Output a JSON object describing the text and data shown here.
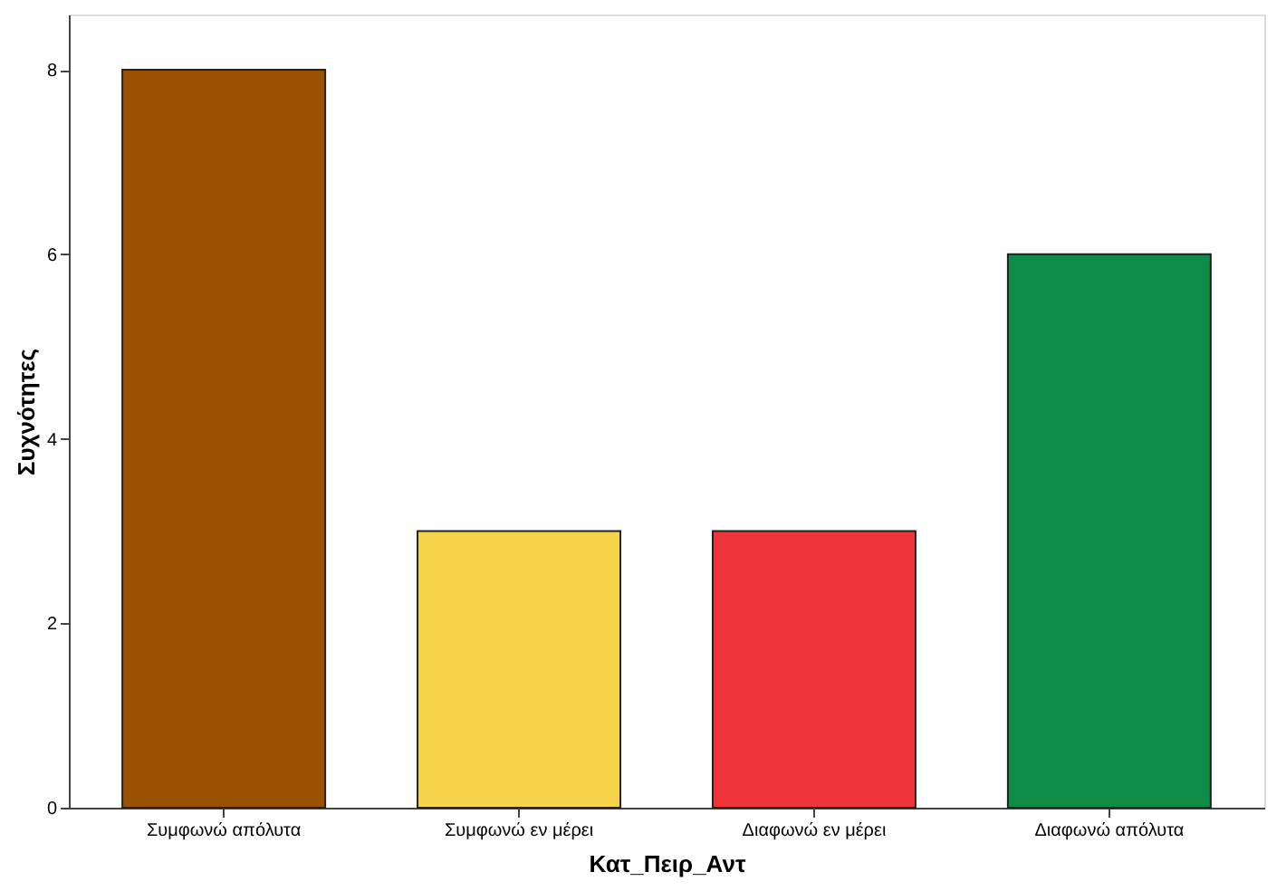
{
  "chart_data": {
    "type": "bar",
    "xlabel": "Κατ_Πειρ_Αντ",
    "ylabel": "Συχνότητες",
    "categories": [
      "Συμφωνώ απόλυτα",
      "Συμφωνώ εν μέρει",
      "Διαφωνώ εν μέρει",
      "Διαφωνώ απόλυτα"
    ],
    "values": [
      8,
      3,
      3,
      6
    ],
    "colors": [
      "#9a5200",
      "#f5d44a",
      "#f0353a",
      "#0f8c47"
    ],
    "ylim": [
      0,
      8.6
    ],
    "yticks": [
      0,
      2,
      4,
      6,
      8
    ],
    "grid": false
  }
}
